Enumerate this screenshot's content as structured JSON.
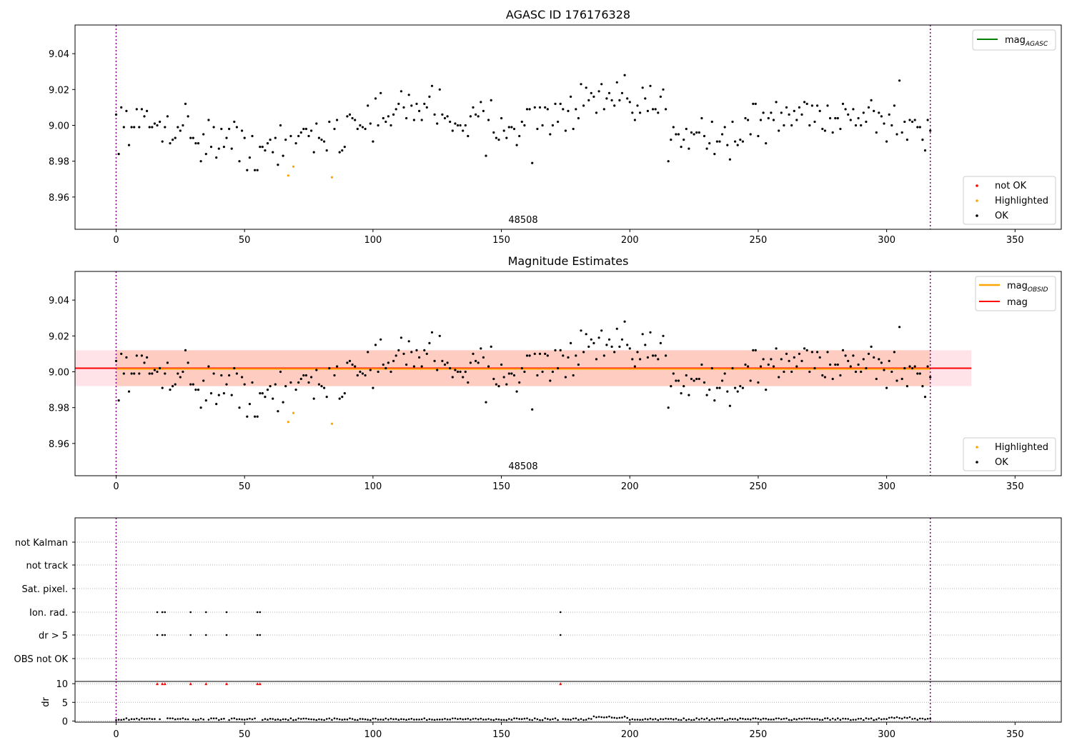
{
  "top": {
    "title": "AGASC ID 176176328",
    "obsid_label": "48508",
    "legend_line": "mag",
    "legend_line_sub": "AGASC",
    "legend_markers": [
      {
        "label": "not OK",
        "color": "#ff0000"
      },
      {
        "label": "Highlighted",
        "color": "#ffa500"
      },
      {
        "label": "OK",
        "color": "#000000"
      }
    ],
    "line_color": "#008000"
  },
  "middle": {
    "title": "Magnitude Estimates",
    "obsid_label": "48508",
    "legend_lines": [
      {
        "label": "mag",
        "sub": "OBSID",
        "color": "#ffa500"
      },
      {
        "label": "mag",
        "sub": "",
        "color": "#ff0000"
      }
    ],
    "legend_markers": [
      {
        "label": "Highlighted",
        "color": "#ffa500"
      },
      {
        "label": "OK",
        "color": "#000000"
      }
    ],
    "band_color": "#ffc0cb",
    "band_inner_color": "#ffa07a"
  },
  "flags": {
    "categories": [
      "OBS not OK",
      "dr > 5",
      "Ion. rad.",
      "Sat. pixel.",
      "not track",
      "not Kalman"
    ],
    "dr_label": "dr"
  },
  "chart_data": [
    {
      "type": "scatter",
      "title": "AGASC ID 176176328",
      "xlim": [
        -16,
        368
      ],
      "ylim": [
        8.942,
        9.056
      ],
      "xticks": [
        0,
        50,
        100,
        150,
        200,
        250,
        300,
        350
      ],
      "yticks": [
        8.96,
        8.98,
        9.0,
        9.02,
        9.04
      ],
      "mag_agasc": 9.0,
      "vlines_x": [
        0,
        317
      ],
      "annotation": "48508",
      "highlighted_points": [
        [
          67,
          8.972
        ],
        [
          69,
          8.977
        ],
        [
          84,
          8.971
        ]
      ],
      "legend": [
        "mag_AGASC",
        "not OK",
        "Highlighted",
        "OK"
      ],
      "series_ok_description": "about 318 points, x 0-317, y 8.978-9.025"
    },
    {
      "type": "scatter",
      "title": "Magnitude Estimates",
      "xlim": [
        -16,
        368
      ],
      "ylim": [
        8.942,
        9.056
      ],
      "xticks": [
        0,
        50,
        100,
        150,
        200,
        250,
        300,
        350
      ],
      "yticks": [
        8.96,
        8.98,
        9.0,
        9.02,
        9.04
      ],
      "mag": 9.002,
      "mag_obsid": 9.002,
      "band_outer": [
        8.992,
        9.012
      ],
      "band_extent_x": [
        -16,
        333
      ],
      "vlines_x": [
        0,
        317
      ],
      "annotation": "48508",
      "highlighted_points": [
        [
          67,
          8.972
        ],
        [
          69,
          8.977
        ],
        [
          84,
          8.971
        ]
      ],
      "legend": [
        "mag_OBSID",
        "mag",
        "Highlighted",
        "OK"
      ]
    },
    {
      "type": "scatter",
      "xlim": [
        -16,
        368
      ],
      "xticks": [
        0,
        50,
        100,
        150,
        200,
        250,
        300,
        350
      ],
      "categories": [
        "OBS not OK",
        "dr > 5",
        "Ion. rad.",
        "Sat. pixel.",
        "not track",
        "not Kalman"
      ],
      "flag_x": [
        16,
        18,
        19,
        29,
        35,
        43,
        55,
        56,
        173
      ],
      "flagged_categories": [
        "dr > 5",
        "Ion. rad."
      ],
      "dr_yticks": [
        0,
        5,
        10
      ],
      "dr_ylim": [
        -0.3,
        10.6
      ],
      "dr_capped_value": 10,
      "dr_typical_range": [
        0.1,
        1.2
      ]
    }
  ]
}
